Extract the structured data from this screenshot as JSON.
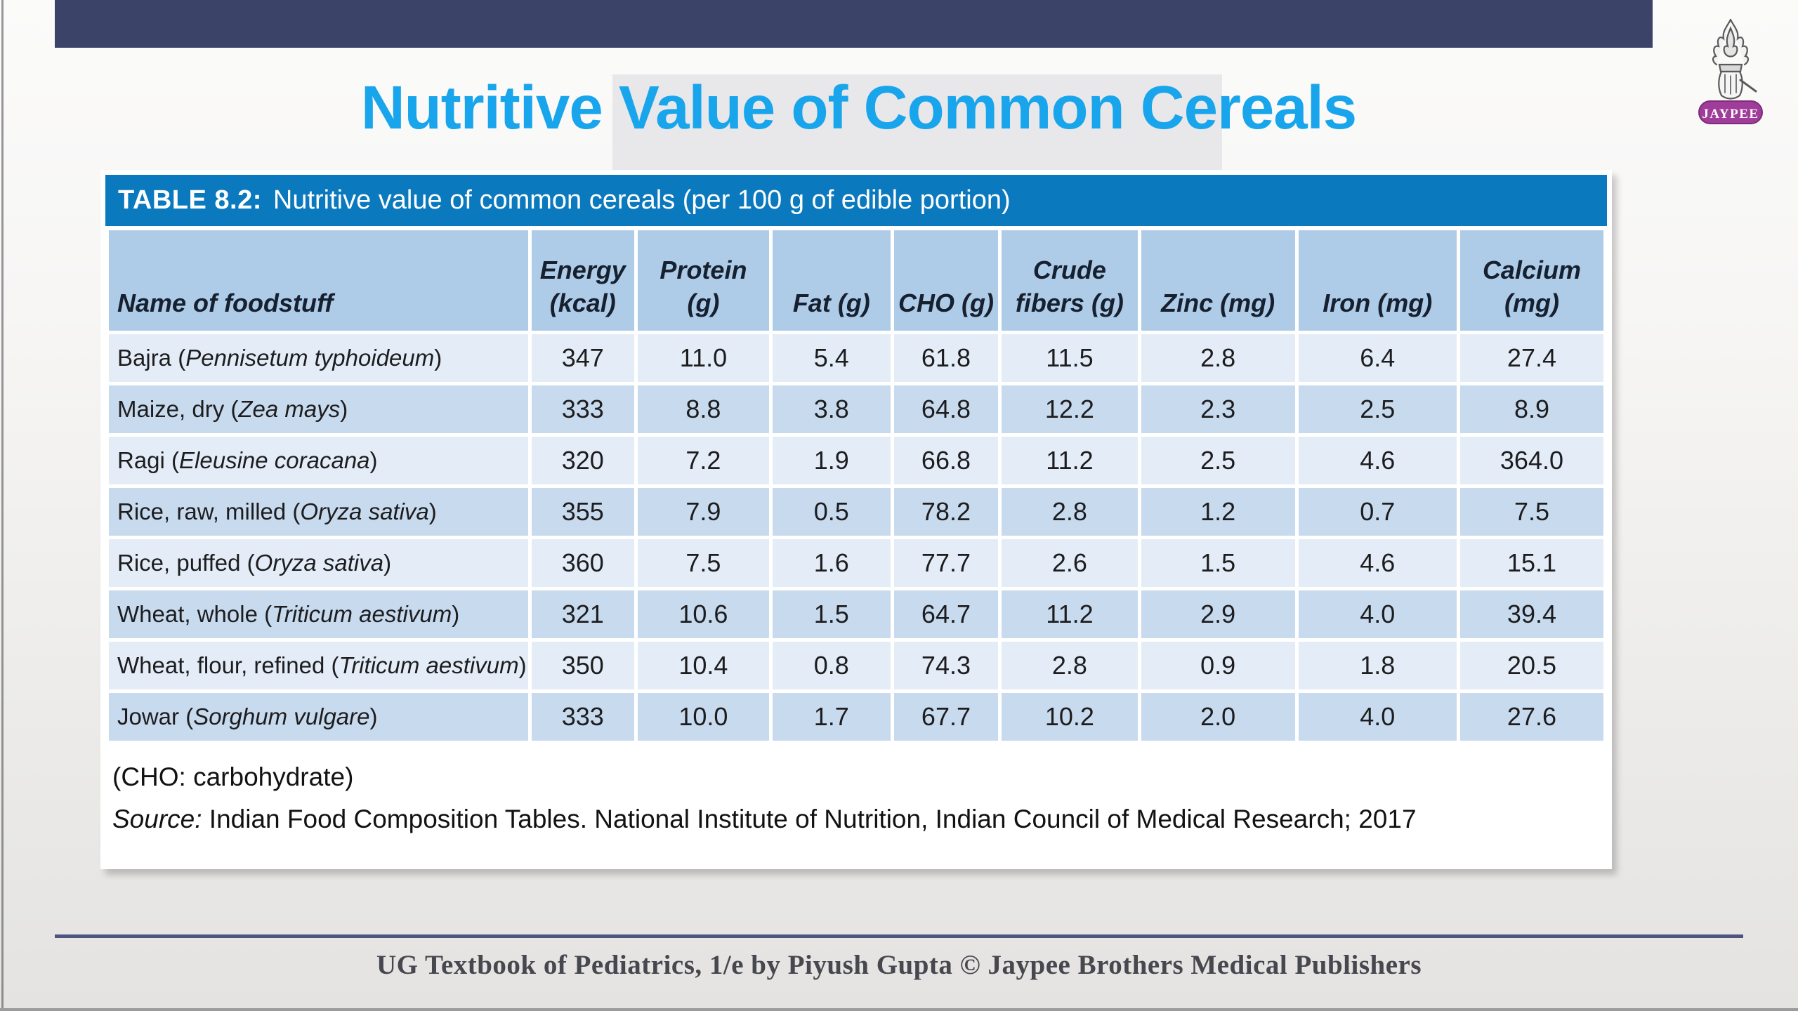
{
  "page": {
    "title": "Nutritive Value of Common Cereals",
    "footer_text": "UG Textbook of Pediatrics, 1/e by Piyush Gupta © Jaypee Brothers Medical Publishers",
    "logo_label": "JAYPEE"
  },
  "colors": {
    "title_blue": "#18a5ec",
    "top_bar_navy": "#3b4368",
    "caption_bar_blue": "#0a79be",
    "column_header_blue": "#aecbe8",
    "row_light": "#e4edf7",
    "row_dark": "#c8daee",
    "logo_purple": "#a03c99",
    "footer_rule_navy": "#4c5480"
  },
  "table": {
    "caption_label": "TABLE 8.2:",
    "caption_text": "Nutritive value of common cereals (per 100 g of edible portion)",
    "columns": [
      "Name of foodstuff",
      "Energy (kcal)",
      "Protein (g)",
      "Fat (g)",
      "CHO (g)",
      "Crude fibers (g)",
      "Zinc (mg)",
      "Iron (mg)",
      "Calcium (mg)"
    ],
    "rows": [
      {
        "food": "Bajra",
        "species": "Pennisetum typhoideum",
        "values": [
          "347",
          "11.0",
          "5.4",
          "61.8",
          "11.5",
          "2.8",
          "6.4",
          "27.4"
        ]
      },
      {
        "food": "Maize, dry",
        "species": "Zea mays",
        "values": [
          "333",
          "8.8",
          "3.8",
          "64.8",
          "12.2",
          "2.3",
          "2.5",
          "8.9"
        ]
      },
      {
        "food": "Ragi",
        "species": "Eleusine coracana",
        "values": [
          "320",
          "7.2",
          "1.9",
          "66.8",
          "11.2",
          "2.5",
          "4.6",
          "364.0"
        ]
      },
      {
        "food": "Rice, raw, milled",
        "species": "Oryza sativa",
        "values": [
          "355",
          "7.9",
          "0.5",
          "78.2",
          "2.8",
          "1.2",
          "0.7",
          "7.5"
        ]
      },
      {
        "food": "Rice, puffed",
        "species": "Oryza sativa",
        "values": [
          "360",
          "7.5",
          "1.6",
          "77.7",
          "2.6",
          "1.5",
          "4.6",
          "15.1"
        ]
      },
      {
        "food": "Wheat, whole",
        "species": "Triticum aestivum",
        "values": [
          "321",
          "10.6",
          "1.5",
          "64.7",
          "11.2",
          "2.9",
          "4.0",
          "39.4"
        ]
      },
      {
        "food": "Wheat, flour, refined",
        "species": "Triticum aestivum",
        "values": [
          "350",
          "10.4",
          "0.8",
          "74.3",
          "2.8",
          "0.9",
          "1.8",
          "20.5"
        ]
      },
      {
        "food": "Jowar",
        "species": "Sorghum vulgare",
        "values": [
          "333",
          "10.0",
          "1.7",
          "67.7",
          "10.2",
          "2.0",
          "4.0",
          "27.6"
        ]
      }
    ],
    "note": "(CHO: carbohydrate)",
    "source_label": "Source:",
    "source_text": "Indian Food Composition Tables. National Institute of Nutrition, Indian Council of Medical Research; 2017"
  }
}
